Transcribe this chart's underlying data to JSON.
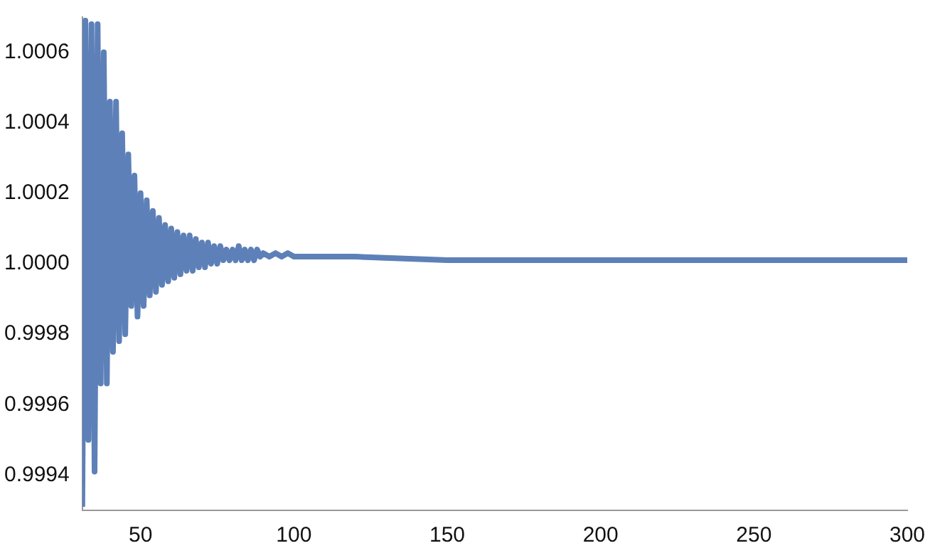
{
  "chart_data": {
    "type": "line",
    "x": [
      31,
      32,
      33,
      34,
      35,
      36,
      37,
      38,
      39,
      40,
      41,
      42,
      43,
      44,
      45,
      46,
      47,
      48,
      49,
      50,
      51,
      52,
      53,
      54,
      55,
      56,
      57,
      58,
      59,
      60,
      61,
      62,
      63,
      64,
      65,
      66,
      67,
      68,
      69,
      70,
      71,
      72,
      73,
      74,
      75,
      76,
      77,
      78,
      79,
      80,
      81,
      82,
      83,
      84,
      85,
      86,
      87,
      88,
      89,
      90,
      92,
      94,
      96,
      98,
      100,
      120,
      150,
      200,
      250,
      300
    ],
    "series": [
      {
        "color": "#5d80b8",
        "values": [
          0.99931,
          1.00069,
          0.9995,
          1.00068,
          0.99941,
          1.00068,
          0.99966,
          1.0006,
          0.99966,
          1.00046,
          0.99975,
          1.00046,
          0.99978,
          1.00037,
          0.9998,
          1.00031,
          0.99988,
          1.00025,
          0.99985,
          1.0002,
          0.99988,
          1.00018,
          0.99991,
          1.00015,
          0.99992,
          1.00013,
          0.99994,
          1.00011,
          0.99995,
          1.0001,
          0.99996,
          1.00009,
          0.99997,
          1.00008,
          0.99998,
          1.00008,
          0.99998,
          1.00007,
          0.99999,
          1.00006,
          0.99999,
          1.00006,
          1.0,
          1.00005,
          1.0,
          1.00005,
          1.00001,
          1.00004,
          1.00001,
          1.00004,
          1.00001,
          1.00005,
          1.00001,
          1.00004,
          1.00001,
          1.00004,
          1.00001,
          1.00004,
          1.00002,
          1.00003,
          1.00002,
          1.00003,
          1.00002,
          1.00003,
          1.00002,
          1.00002,
          1.00001,
          1.00001,
          1.00001,
          1.00001
        ]
      }
    ],
    "xlim": [
      31,
      300
    ],
    "xticks": [
      50,
      100,
      150,
      200,
      250,
      300
    ],
    "ylim": [
      0.9993,
      1.0007
    ],
    "yticks": [
      {
        "value": 0.9994,
        "label": "0.9994"
      },
      {
        "value": 0.9996,
        "label": "0.9996"
      },
      {
        "value": 0.9998,
        "label": "0.9998"
      },
      {
        "value": 1.0,
        "label": "1.0000"
      },
      {
        "value": 1.0002,
        "label": "1.0002"
      },
      {
        "value": 1.0004,
        "label": "1.0004"
      },
      {
        "value": 1.0006,
        "label": "1.0006"
      }
    ],
    "grid": false,
    "legend": false,
    "marker": "none",
    "line_style": "solid"
  }
}
